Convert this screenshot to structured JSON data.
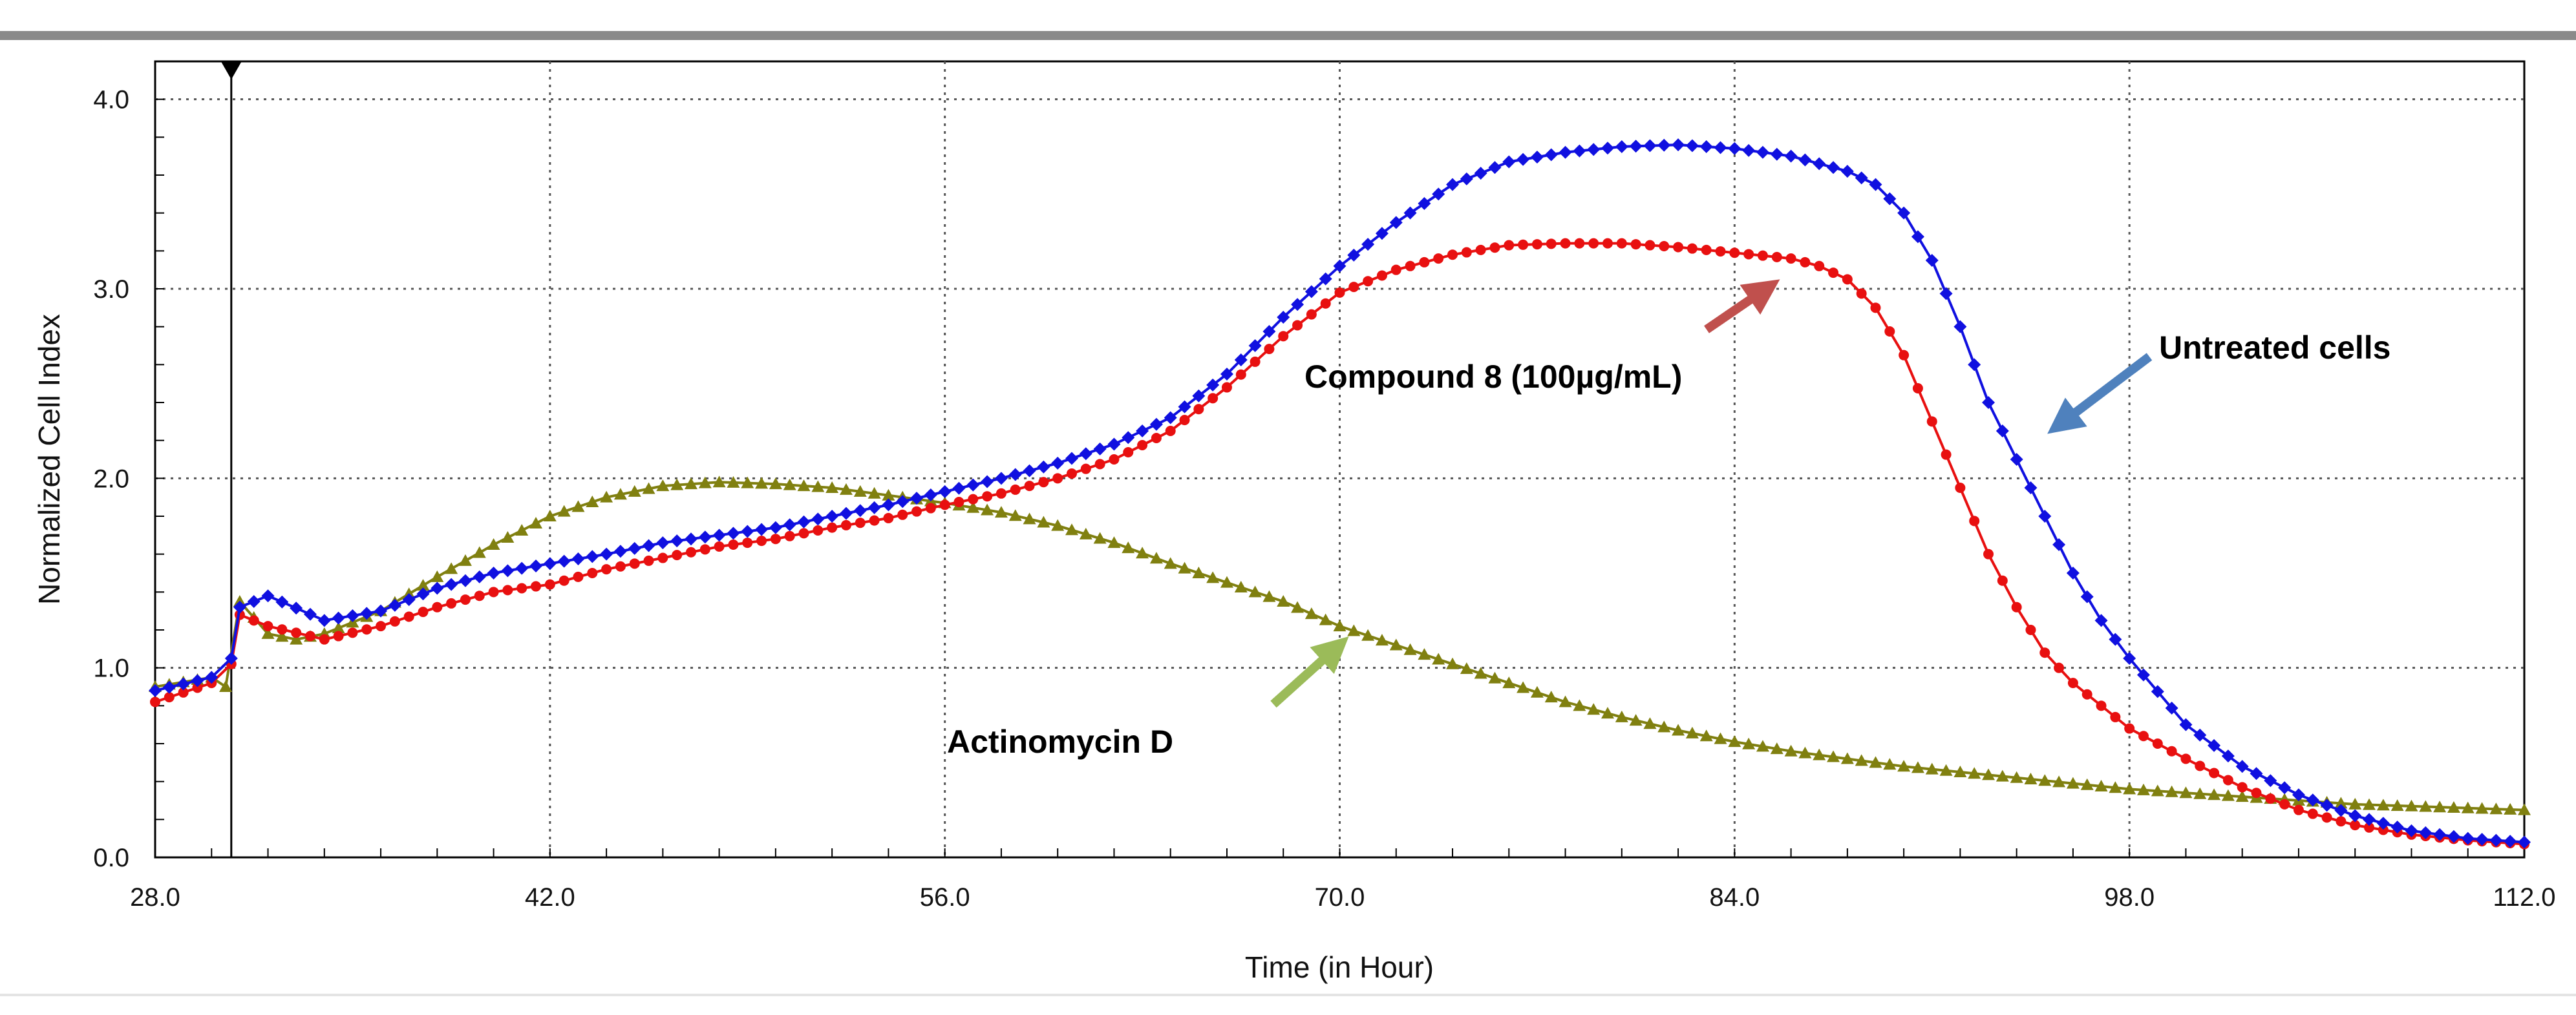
{
  "chart_data": {
    "type": "line",
    "xlabel": "Time (in Hour)",
    "ylabel": "Normalized Cell Index",
    "xlim": [
      28,
      112
    ],
    "ylim": [
      0,
      4.2
    ],
    "xticks": [
      "28.0",
      "42.0",
      "56.0",
      "70.0",
      "84.0",
      "98.0",
      "112.0"
    ],
    "yticks": [
      "0.0",
      "1.0",
      "2.0",
      "3.0",
      "4.0"
    ],
    "grid": true,
    "treatment_time": 30.7,
    "series": [
      {
        "color": "#1010e0",
        "marker": "diamond",
        "x": [
          28,
          30,
          30.7,
          31,
          32,
          34,
          36,
          38,
          40,
          42,
          44,
          46,
          48,
          50,
          52,
          54,
          56,
          58,
          60,
          62,
          64,
          66,
          68,
          70,
          72,
          74,
          76,
          78,
          80,
          82,
          84,
          86,
          88,
          89,
          90,
          91,
          92,
          93,
          94,
          95,
          96,
          97,
          98,
          100,
          102,
          104,
          106,
          108,
          110,
          112
        ],
        "y": [
          0.88,
          0.95,
          1.05,
          1.32,
          1.38,
          1.25,
          1.3,
          1.42,
          1.5,
          1.55,
          1.6,
          1.66,
          1.7,
          1.74,
          1.8,
          1.86,
          1.93,
          2.0,
          2.08,
          2.18,
          2.32,
          2.55,
          2.85,
          3.12,
          3.35,
          3.55,
          3.67,
          3.72,
          3.75,
          3.76,
          3.74,
          3.7,
          3.62,
          3.55,
          3.4,
          3.15,
          2.8,
          2.4,
          2.1,
          1.8,
          1.5,
          1.25,
          1.05,
          0.7,
          0.48,
          0.33,
          0.22,
          0.14,
          0.1,
          0.08
        ]
      },
      {
        "color": "#e81010",
        "marker": "circle",
        "x": [
          28,
          30,
          30.7,
          31,
          32,
          34,
          36,
          38,
          40,
          42,
          44,
          46,
          48,
          50,
          52,
          54,
          56,
          58,
          60,
          62,
          64,
          66,
          68,
          70,
          72,
          74,
          76,
          78,
          80,
          82,
          84,
          86,
          87,
          88,
          89,
          90,
          91,
          92,
          93,
          94,
          95,
          96,
          98,
          100,
          102,
          104,
          106,
          108,
          110,
          112
        ],
        "y": [
          0.82,
          0.92,
          1.02,
          1.28,
          1.22,
          1.15,
          1.22,
          1.32,
          1.4,
          1.44,
          1.52,
          1.58,
          1.64,
          1.68,
          1.74,
          1.79,
          1.86,
          1.92,
          2.0,
          2.1,
          2.25,
          2.48,
          2.75,
          2.98,
          3.1,
          3.18,
          3.23,
          3.24,
          3.24,
          3.22,
          3.19,
          3.16,
          3.12,
          3.05,
          2.9,
          2.65,
          2.3,
          1.95,
          1.6,
          1.32,
          1.08,
          0.92,
          0.68,
          0.52,
          0.37,
          0.25,
          0.17,
          0.12,
          0.09,
          0.07
        ]
      },
      {
        "color": "#808010",
        "marker": "triangle",
        "x": [
          28,
          30,
          30.5,
          31,
          32,
          33,
          34,
          36,
          38,
          40,
          42,
          44,
          46,
          48,
          50,
          52,
          54,
          56,
          58,
          60,
          62,
          64,
          66,
          68,
          70,
          72,
          74,
          76,
          78,
          80,
          82,
          84,
          86,
          88,
          90,
          92,
          94,
          96,
          98,
          100,
          102,
          104,
          106,
          108,
          110,
          112
        ],
        "y": [
          0.9,
          0.95,
          0.9,
          1.35,
          1.18,
          1.15,
          1.18,
          1.3,
          1.48,
          1.65,
          1.8,
          1.9,
          1.96,
          1.98,
          1.97,
          1.95,
          1.91,
          1.87,
          1.82,
          1.75,
          1.66,
          1.55,
          1.45,
          1.35,
          1.22,
          1.12,
          1.02,
          0.92,
          0.82,
          0.74,
          0.67,
          0.61,
          0.56,
          0.52,
          0.48,
          0.45,
          0.42,
          0.39,
          0.36,
          0.34,
          0.32,
          0.3,
          0.28,
          0.27,
          0.26,
          0.25
        ]
      }
    ],
    "annotations": [
      {
        "text": "Untreated cells",
        "color": "#4f81bd"
      },
      {
        "text": "Compound  8 (100µg/mL)",
        "color": "#c0504d"
      },
      {
        "text": "Actinomycin  D",
        "color": "#9bbb59"
      }
    ]
  }
}
